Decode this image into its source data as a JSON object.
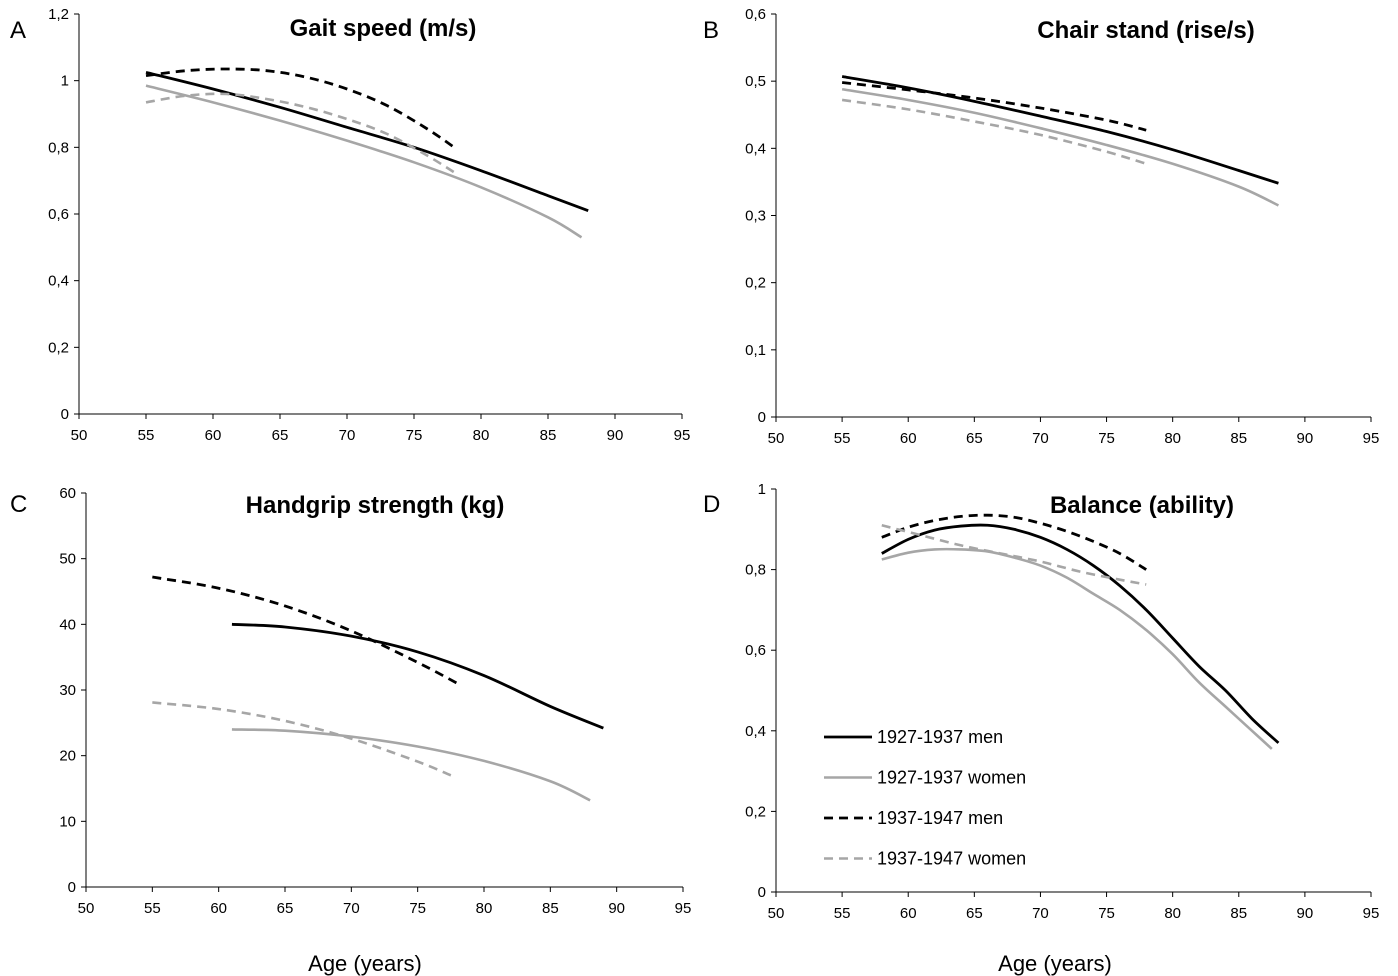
{
  "legend": [
    {
      "label": "1927-1937 men",
      "color": "#000000",
      "dash": false
    },
    {
      "label": "1927-1937 women",
      "color": "#a6a6a6",
      "dash": false
    },
    {
      "label": "1937-1947 men",
      "color": "#000000",
      "dash": true
    },
    {
      "label": "1937-1947 women",
      "color": "#a6a6a6",
      "dash": true
    }
  ],
  "chart_data": [
    {
      "panel": "A",
      "type": "line",
      "title": "Gait speed (m/s)",
      "xlabel": "",
      "xlim": [
        50,
        95
      ],
      "xticks": [
        50,
        55,
        60,
        65,
        70,
        75,
        80,
        85,
        90,
        95
      ],
      "ylim": [
        0,
        1.2
      ],
      "yticks": [
        0,
        0.2,
        0.4,
        0.6,
        0.8,
        1,
        1.2
      ],
      "ytick_labels": [
        "0",
        "0,2",
        "0,4",
        "0,6",
        "0,8",
        "1",
        "1,2"
      ],
      "series": [
        {
          "name": "1927-1937 men",
          "x": [
            55,
            60,
            65,
            70,
            75,
            80,
            85,
            88
          ],
          "y": [
            1.025,
            0.975,
            0.92,
            0.86,
            0.8,
            0.73,
            0.655,
            0.61
          ]
        },
        {
          "name": "1927-1937 women",
          "x": [
            55,
            60,
            65,
            70,
            75,
            80,
            85,
            87.5
          ],
          "y": [
            0.985,
            0.935,
            0.88,
            0.82,
            0.755,
            0.68,
            0.59,
            0.53
          ]
        },
        {
          "name": "1937-1947 men",
          "x": [
            55,
            58,
            61,
            64,
            67,
            70,
            73,
            76,
            78
          ],
          "y": [
            1.015,
            1.03,
            1.035,
            1.03,
            1.01,
            0.975,
            0.925,
            0.855,
            0.8
          ]
        },
        {
          "name": "1937-1947 women",
          "x": [
            55,
            58,
            61,
            64,
            67,
            70,
            73,
            76,
            78
          ],
          "y": [
            0.935,
            0.955,
            0.96,
            0.945,
            0.92,
            0.885,
            0.84,
            0.775,
            0.725
          ]
        }
      ]
    },
    {
      "panel": "B",
      "type": "line",
      "title": "Chair stand (rise/s)",
      "xlabel": "",
      "xlim": [
        50,
        95
      ],
      "xticks": [
        50,
        55,
        60,
        65,
        70,
        75,
        80,
        85,
        90,
        95
      ],
      "ylim": [
        0,
        0.6
      ],
      "yticks": [
        0,
        0.1,
        0.2,
        0.3,
        0.4,
        0.5,
        0.6
      ],
      "ytick_labels": [
        "0",
        "0,1",
        "0,2",
        "0,3",
        "0,4",
        "0,5",
        "0,6"
      ],
      "series": [
        {
          "name": "1927-1937 men",
          "x": [
            55,
            60,
            65,
            70,
            75,
            80,
            85,
            88
          ],
          "y": [
            0.507,
            0.49,
            0.47,
            0.448,
            0.425,
            0.398,
            0.367,
            0.348
          ]
        },
        {
          "name": "1927-1937 women",
          "x": [
            55,
            60,
            65,
            70,
            75,
            80,
            85,
            88
          ],
          "y": [
            0.488,
            0.472,
            0.453,
            0.43,
            0.405,
            0.377,
            0.343,
            0.315
          ]
        },
        {
          "name": "1937-1947 men",
          "x": [
            55,
            60,
            65,
            70,
            75,
            78
          ],
          "y": [
            0.498,
            0.487,
            0.475,
            0.46,
            0.442,
            0.427
          ]
        },
        {
          "name": "1937-1947 women",
          "x": [
            55,
            60,
            65,
            70,
            75,
            78
          ],
          "y": [
            0.472,
            0.458,
            0.44,
            0.42,
            0.395,
            0.377
          ]
        }
      ]
    },
    {
      "panel": "C",
      "type": "line",
      "title": "Handgrip strength (kg)",
      "xlabel": "Age (years)",
      "xlim": [
        50,
        95
      ],
      "xticks": [
        50,
        55,
        60,
        65,
        70,
        75,
        80,
        85,
        90,
        95
      ],
      "ylim": [
        0,
        60
      ],
      "yticks": [
        0,
        10,
        20,
        30,
        40,
        50,
        60
      ],
      "ytick_labels": [
        "0",
        "10",
        "20",
        "30",
        "40",
        "50",
        "60"
      ],
      "series": [
        {
          "name": "1927-1937 men",
          "x": [
            61,
            65,
            70,
            75,
            80,
            85,
            89
          ],
          "y": [
            40,
            39.6,
            38.2,
            35.8,
            32.2,
            27.5,
            24.2
          ]
        },
        {
          "name": "1927-1937 women",
          "x": [
            61,
            65,
            70,
            75,
            80,
            85,
            88
          ],
          "y": [
            24,
            23.8,
            22.9,
            21.4,
            19.2,
            16.1,
            13.2
          ]
        },
        {
          "name": "1937-1947 men",
          "x": [
            55,
            60,
            65,
            70,
            75,
            78
          ],
          "y": [
            47.2,
            45.5,
            42.8,
            39,
            34.2,
            31
          ]
        },
        {
          "name": "1937-1947 women",
          "x": [
            55,
            60,
            65,
            70,
            75,
            77.5
          ],
          "y": [
            28.1,
            27.1,
            25.3,
            22.6,
            19.1,
            17
          ]
        }
      ]
    },
    {
      "panel": "D",
      "type": "line",
      "title": "Balance (ability)",
      "xlabel": "Age (years)",
      "xlim": [
        50,
        95
      ],
      "xticks": [
        50,
        55,
        60,
        65,
        70,
        75,
        80,
        85,
        90,
        95
      ],
      "ylim": [
        0,
        1
      ],
      "yticks": [
        0,
        0.2,
        0.4,
        0.6,
        0.8,
        1
      ],
      "ytick_labels": [
        "0",
        "0,2",
        "0,4",
        "0,6",
        "0,8",
        "1"
      ],
      "series": [
        {
          "name": "1927-1937 men",
          "x": [
            58,
            60,
            62,
            64,
            66,
            68,
            70,
            72,
            74,
            76,
            78,
            80,
            82,
            84,
            86,
            88
          ],
          "y": [
            0.84,
            0.875,
            0.898,
            0.908,
            0.91,
            0.9,
            0.88,
            0.85,
            0.81,
            0.76,
            0.7,
            0.63,
            0.56,
            0.5,
            0.43,
            0.37
          ]
        },
        {
          "name": "1927-1937 women",
          "x": [
            58,
            60,
            62,
            64,
            66,
            68,
            70,
            72,
            74,
            76,
            78,
            80,
            82,
            84,
            86,
            87.5
          ],
          "y": [
            0.825,
            0.842,
            0.85,
            0.85,
            0.845,
            0.83,
            0.81,
            0.78,
            0.74,
            0.7,
            0.65,
            0.59,
            0.52,
            0.46,
            0.4,
            0.355
          ]
        },
        {
          "name": "1937-1947 men",
          "x": [
            58,
            60,
            62,
            64,
            66,
            68,
            70,
            72,
            74,
            76,
            78
          ],
          "y": [
            0.88,
            0.905,
            0.922,
            0.932,
            0.935,
            0.93,
            0.915,
            0.895,
            0.87,
            0.84,
            0.8
          ]
        },
        {
          "name": "1937-1947 women",
          "x": [
            58,
            61,
            64,
            67,
            70,
            73,
            76,
            78
          ],
          "y": [
            0.91,
            0.885,
            0.86,
            0.84,
            0.82,
            0.795,
            0.775,
            0.763
          ]
        }
      ]
    }
  ]
}
